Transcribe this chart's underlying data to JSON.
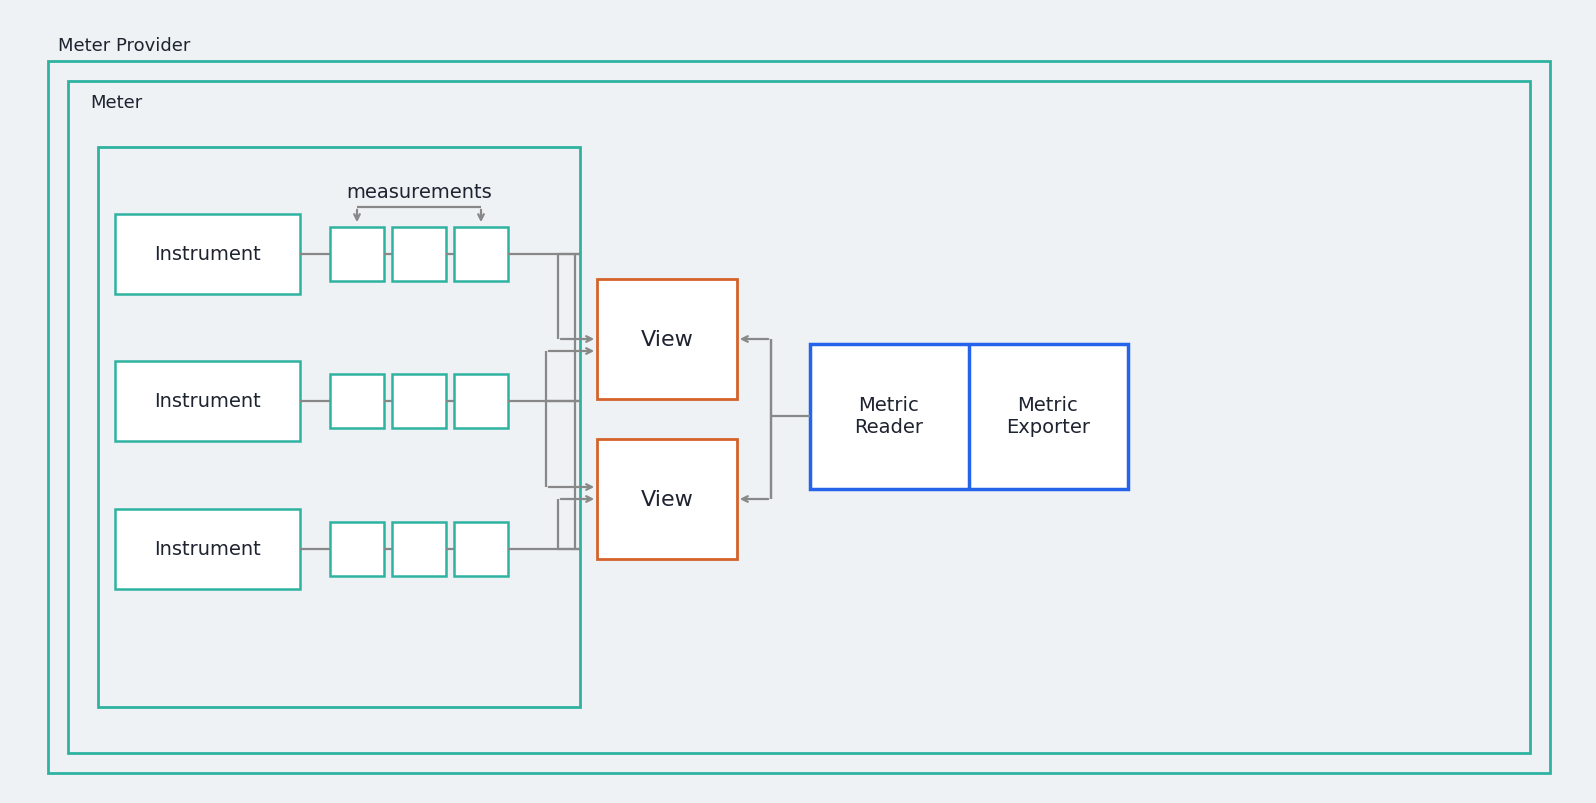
{
  "bg_color": "#eef2f5",
  "title_meter_provider": "Meter Provider",
  "title_meter": "Meter",
  "title_measurements": "measurements",
  "instrument_label": "Instrument",
  "view_label": "View",
  "metric_reader_label": "Metric\nReader",
  "metric_exporter_label": "Metric\nExporter",
  "teal_color": "#2db3a0",
  "view_box_color": "#d4622a",
  "metric_box_color": "#2563eb",
  "connector_color": "#888888",
  "font_color": "#1e2330",
  "font_size_label": 14,
  "font_size_title": 13,
  "font_size_view": 16
}
